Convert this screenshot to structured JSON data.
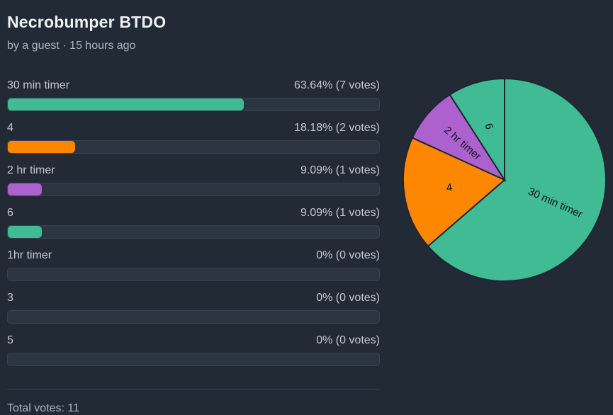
{
  "poll": {
    "title": "Necrobumper BTDO",
    "byline": "by a guest · 15 hours ago",
    "total_label": "Total votes: 11"
  },
  "options": [
    {
      "label": "30 min timer",
      "result": "63.64% (7 votes)",
      "fraction": 0.6364,
      "color": "#40bb93"
    },
    {
      "label": "4",
      "result": "18.18% (2 votes)",
      "fraction": 0.1818,
      "color": "#fd8700"
    },
    {
      "label": "2 hr timer",
      "result": "9.09% (1 votes)",
      "fraction": 0.0909,
      "color": "#ad61cf"
    },
    {
      "label": "6",
      "result": "9.09% (1 votes)",
      "fraction": 0.0909,
      "color": "#40bb93"
    },
    {
      "label": "1hr timer",
      "result": "0% (0 votes)",
      "fraction": 0,
      "color": "#40bb93"
    },
    {
      "label": "3",
      "result": "0% (0 votes)",
      "fraction": 0,
      "color": "#40bb93"
    },
    {
      "label": "5",
      "result": "0% (0 votes)",
      "fraction": 0,
      "color": "#40bb93"
    }
  ],
  "chart_data": {
    "type": "pie",
    "categories": [
      "30 min timer",
      "4",
      "2 hr timer",
      "6"
    ],
    "values": [
      7,
      2,
      1,
      1
    ],
    "colors": [
      "#40bb93",
      "#fd8700",
      "#ad61cf",
      "#40bb93"
    ],
    "title": "",
    "legend": "none"
  }
}
